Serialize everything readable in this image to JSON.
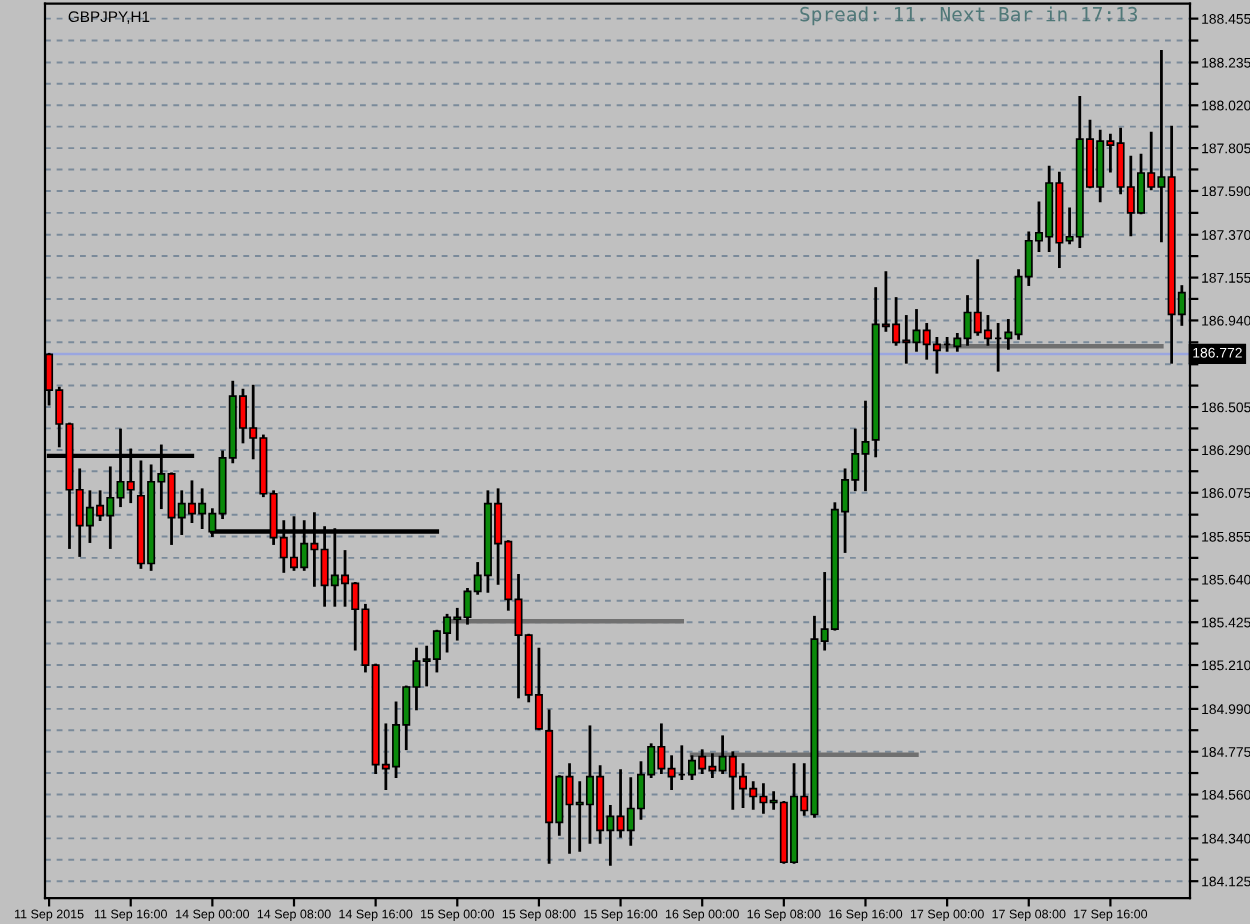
{
  "chart_data": {
    "type": "candlestick",
    "title": "GBPJPY,H1",
    "annotations": [
      "Spread: 11. Next Bar in 17:13"
    ],
    "categories": [
      "11 Sep 2015",
      null,
      null,
      null,
      null,
      null,
      null,
      null,
      "11 Sep 16:00",
      null,
      null,
      null,
      null,
      null,
      null,
      null,
      "14 Sep 00:00",
      null,
      null,
      null,
      null,
      null,
      null,
      null,
      "14 Sep 08:00",
      null,
      null,
      null,
      null,
      null,
      null,
      null,
      "14 Sep 16:00",
      null,
      null,
      null,
      null,
      null,
      null,
      null,
      "15 Sep 00:00",
      null,
      null,
      null,
      null,
      null,
      null,
      null,
      "15 Sep 08:00",
      null,
      null,
      null,
      null,
      null,
      null,
      null,
      "15 Sep 16:00",
      null,
      null,
      null,
      null,
      null,
      null,
      null,
      "16 Sep 00:00",
      null,
      null,
      null,
      null,
      null,
      null,
      null,
      "16 Sep 08:00",
      null,
      null,
      null,
      null,
      null,
      null,
      null,
      "16 Sep 16:00",
      null,
      null,
      null,
      null,
      null,
      null,
      null,
      "17 Sep 00:00",
      null,
      null,
      null,
      null,
      null,
      null,
      null,
      "17 Sep 08:00",
      null,
      null,
      null,
      null,
      null,
      null,
      null,
      "17 Sep 16:00",
      null,
      null,
      null,
      null,
      null,
      null,
      null
    ],
    "ohlc": [
      [
        186.77,
        186.77,
        186.52,
        186.59
      ],
      [
        186.59,
        186.6,
        186.31,
        186.42
      ],
      [
        186.42,
        186.42,
        185.8,
        186.09
      ],
      [
        186.09,
        186.19,
        185.76,
        185.91
      ],
      [
        185.91,
        186.08,
        185.83,
        186.0
      ],
      [
        186.01,
        186.08,
        185.94,
        185.96
      ],
      [
        185.96,
        186.2,
        185.8,
        186.05
      ],
      [
        186.05,
        186.39,
        186.01,
        186.13
      ],
      [
        186.13,
        186.29,
        186.03,
        186.09
      ],
      [
        186.06,
        186.23,
        185.7,
        185.72
      ],
      [
        185.72,
        186.21,
        185.69,
        186.13
      ],
      [
        186.13,
        186.31,
        186.0,
        186.17
      ],
      [
        186.17,
        186.17,
        185.82,
        185.95
      ],
      [
        185.95,
        186.08,
        185.87,
        186.02
      ],
      [
        186.02,
        186.13,
        185.93,
        185.97
      ],
      [
        185.97,
        186.09,
        185.9,
        186.02
      ],
      [
        185.88,
        185.99,
        185.86,
        185.97
      ],
      [
        185.97,
        186.28,
        185.95,
        186.25
      ],
      [
        186.25,
        186.63,
        186.23,
        186.56
      ],
      [
        186.56,
        186.59,
        186.33,
        186.4
      ],
      [
        186.4,
        186.61,
        186.25,
        186.35
      ],
      [
        186.35,
        186.36,
        186.06,
        186.07
      ],
      [
        186.07,
        186.08,
        185.82,
        185.85
      ],
      [
        185.85,
        185.93,
        185.68,
        185.75
      ],
      [
        185.75,
        185.95,
        185.69,
        185.7
      ],
      [
        185.7,
        185.93,
        185.69,
        185.82
      ],
      [
        185.82,
        185.97,
        185.61,
        185.79
      ],
      [
        185.79,
        185.9,
        185.51,
        185.61
      ],
      [
        185.61,
        185.89,
        185.51,
        185.66
      ],
      [
        185.66,
        185.78,
        185.51,
        185.62
      ],
      [
        185.62,
        185.62,
        185.29,
        185.49
      ],
      [
        185.49,
        185.51,
        185.18,
        185.21
      ],
      [
        185.21,
        185.21,
        184.67,
        184.71
      ],
      [
        184.71,
        184.91,
        184.59,
        184.69
      ],
      [
        184.7,
        185.02,
        184.65,
        184.91
      ],
      [
        184.91,
        185.1,
        184.79,
        185.1
      ],
      [
        185.1,
        185.29,
        184.99,
        185.23
      ],
      [
        185.23,
        185.3,
        185.11,
        185.24
      ],
      [
        185.24,
        185.38,
        185.18,
        185.38
      ],
      [
        185.37,
        185.46,
        185.28,
        185.45
      ],
      [
        185.44,
        185.49,
        185.34,
        185.45
      ],
      [
        185.45,
        185.59,
        185.42,
        185.58
      ],
      [
        185.58,
        185.72,
        185.57,
        185.66
      ],
      [
        185.66,
        186.08,
        185.58,
        186.02
      ],
      [
        186.02,
        186.09,
        185.62,
        185.82
      ],
      [
        185.83,
        185.83,
        185.49,
        185.54
      ],
      [
        185.54,
        185.66,
        185.05,
        185.36
      ],
      [
        185.36,
        185.36,
        185.03,
        185.06
      ],
      [
        185.06,
        185.29,
        184.89,
        184.89
      ],
      [
        184.88,
        184.98,
        184.22,
        184.42
      ],
      [
        184.42,
        184.65,
        184.36,
        184.65
      ],
      [
        184.65,
        184.71,
        184.27,
        184.51
      ],
      [
        184.51,
        184.62,
        184.28,
        184.52
      ],
      [
        184.51,
        184.9,
        184.32,
        184.65
      ],
      [
        184.65,
        184.7,
        184.32,
        184.38
      ],
      [
        184.38,
        184.5,
        184.21,
        184.45
      ],
      [
        184.45,
        184.68,
        184.35,
        184.38
      ],
      [
        184.38,
        184.64,
        184.31,
        184.49
      ],
      [
        184.49,
        184.72,
        184.44,
        184.66
      ],
      [
        184.66,
        184.81,
        184.65,
        184.8
      ],
      [
        184.8,
        184.91,
        184.67,
        184.69
      ],
      [
        184.69,
        184.75,
        184.59,
        184.65
      ],
      [
        184.66,
        184.8,
        184.64,
        184.66
      ],
      [
        184.66,
        184.75,
        184.64,
        184.73
      ],
      [
        184.75,
        184.78,
        184.67,
        184.69
      ],
      [
        184.7,
        184.76,
        184.65,
        184.68
      ],
      [
        184.68,
        184.85,
        184.67,
        184.75
      ],
      [
        184.75,
        184.77,
        184.49,
        184.65
      ],
      [
        184.65,
        184.71,
        184.5,
        184.59
      ],
      [
        184.59,
        184.62,
        184.49,
        184.55
      ],
      [
        184.55,
        184.61,
        184.47,
        184.52
      ],
      [
        184.52,
        184.57,
        184.49,
        184.53
      ],
      [
        184.52,
        184.52,
        184.22,
        184.22
      ],
      [
        184.22,
        184.71,
        184.22,
        184.55
      ],
      [
        184.55,
        184.71,
        184.46,
        184.48
      ],
      [
        184.46,
        185.45,
        184.45,
        185.34
      ],
      [
        185.33,
        185.67,
        185.29,
        185.39
      ],
      [
        185.39,
        186.02,
        185.39,
        185.99
      ],
      [
        185.98,
        186.19,
        185.78,
        186.14
      ],
      [
        186.14,
        186.39,
        186.09,
        186.27
      ],
      [
        186.27,
        186.53,
        186.09,
        186.33
      ],
      [
        186.34,
        187.1,
        186.26,
        186.92
      ],
      [
        186.92,
        187.18,
        186.89,
        186.91
      ],
      [
        186.92,
        187.05,
        186.82,
        186.83
      ],
      [
        186.84,
        186.96,
        186.73,
        186.83
      ],
      [
        186.83,
        186.99,
        186.79,
        186.89
      ],
      [
        186.89,
        186.92,
        186.75,
        186.82
      ],
      [
        186.82,
        186.85,
        186.68,
        186.79
      ],
      [
        186.82,
        186.85,
        186.79,
        186.82
      ],
      [
        186.81,
        186.87,
        186.79,
        186.85
      ],
      [
        186.85,
        187.06,
        186.82,
        186.98
      ],
      [
        186.98,
        187.24,
        186.87,
        186.88
      ],
      [
        186.89,
        186.96,
        186.82,
        186.85
      ],
      [
        186.85,
        186.92,
        186.69,
        186.85
      ],
      [
        186.85,
        186.94,
        186.8,
        186.88
      ],
      [
        186.87,
        187.19,
        186.85,
        187.16
      ],
      [
        187.16,
        187.38,
        187.12,
        187.34
      ],
      [
        187.34,
        187.53,
        187.29,
        187.38
      ],
      [
        187.36,
        187.71,
        187.29,
        187.63
      ],
      [
        187.63,
        187.68,
        187.21,
        187.33
      ],
      [
        187.34,
        187.5,
        187.33,
        187.36
      ],
      [
        187.36,
        188.06,
        187.31,
        187.85
      ],
      [
        187.85,
        187.94,
        187.61,
        187.61
      ],
      [
        187.61,
        187.89,
        187.54,
        187.84
      ],
      [
        187.84,
        187.87,
        187.69,
        187.82
      ],
      [
        187.83,
        187.9,
        187.58,
        187.61
      ],
      [
        187.61,
        187.76,
        187.37,
        187.48
      ],
      [
        187.48,
        187.77,
        187.48,
        187.68
      ],
      [
        187.68,
        187.88,
        187.6,
        187.61
      ],
      [
        187.61,
        188.29,
        187.34,
        187.66
      ],
      [
        187.66,
        187.91,
        186.73,
        186.97
      ],
      [
        186.97,
        187.11,
        186.92,
        187.08
      ]
    ],
    "colors": [
      "#ff0000",
      "#ff0000",
      "#ff0000",
      "#ff0000",
      "#0a8a0a",
      "#ff0000",
      "#0a8a0a",
      "#0a8a0a",
      "#ff0000",
      "#ff0000",
      "#0a8a0a",
      "#0a8a0a",
      "#ff0000",
      "#0a8a0a",
      "#ff0000",
      "#0a8a0a",
      "#0a8a0a",
      "#0a8a0a",
      "#0a8a0a",
      "#ff0000",
      "#ff0000",
      "#ff0000",
      "#ff0000",
      "#ff0000",
      "#ff0000",
      "#0a8a0a",
      "#ff0000",
      "#ff0000",
      "#0a8a0a",
      "#ff0000",
      "#ff0000",
      "#ff0000",
      "#ff0000",
      "#ff0000",
      "#0a8a0a",
      "#0a8a0a",
      "#0a8a0a",
      "#0a8a0a",
      "#0a8a0a",
      "#0a8a0a",
      "#0a8a0a",
      "#0a8a0a",
      "#0a8a0a",
      "#0a8a0a",
      "#ff0000",
      "#ff0000",
      "#ff0000",
      "#ff0000",
      "#ff0000",
      "#ff0000",
      "#0a8a0a",
      "#ff0000",
      "#0a8a0a",
      "#0a8a0a",
      "#ff0000",
      "#0a8a0a",
      "#ff0000",
      "#0a8a0a",
      "#0a8a0a",
      "#0a8a0a",
      "#ff0000",
      "#ff0000",
      "#000000",
      "#0a8a0a",
      "#ff0000",
      "#ff0000",
      "#0a8a0a",
      "#ff0000",
      "#ff0000",
      "#ff0000",
      "#ff0000",
      "#0a8a0a",
      "#ff0000",
      "#0a8a0a",
      "#ff0000",
      "#0a8a0a",
      "#0a8a0a",
      "#0a8a0a",
      "#0a8a0a",
      "#0a8a0a",
      "#0a8a0a",
      "#0a8a0a",
      "#ff0000",
      "#ff0000",
      "#ff0000",
      "#0a8a0a",
      "#ff0000",
      "#ff0000",
      "#000000",
      "#0a8a0a",
      "#0a8a0a",
      "#ff0000",
      "#ff0000",
      "#000000",
      "#0a8a0a",
      "#0a8a0a",
      "#0a8a0a",
      "#0a8a0a",
      "#0a8a0a",
      "#ff0000",
      "#0a8a0a",
      "#0a8a0a",
      "#ff0000",
      "#0a8a0a",
      "#ff0000",
      "#ff0000",
      "#ff0000",
      "#0a8a0a",
      "#ff0000",
      "#0a8a0a",
      "#ff0000",
      "#0a8a0a"
    ],
    "series": [
      {
        "type": "line",
        "color": "#000000",
        "values": [
          186.26,
          186.26,
          186.26,
          186.26,
          186.26,
          186.26,
          186.26,
          186.26,
          186.26,
          186.26,
          186.26,
          186.26,
          186.26,
          186.26,
          186.26,
          null,
          null,
          null,
          null,
          null,
          null,
          null,
          null,
          null,
          null,
          null,
          null,
          null,
          null,
          null,
          null,
          null,
          null,
          null,
          null,
          null,
          null,
          null,
          null,
          null,
          null,
          null,
          null,
          null,
          null,
          null,
          null,
          null,
          null,
          null,
          null,
          null,
          null,
          null,
          null,
          null,
          null,
          null,
          null,
          null,
          null,
          null,
          null,
          null,
          null,
          null,
          null,
          null,
          null,
          null,
          null,
          null,
          null,
          null,
          null,
          null,
          null,
          null,
          null,
          null,
          null,
          null,
          null,
          null,
          null,
          null,
          null,
          null,
          null,
          null,
          null,
          null,
          null,
          null,
          null,
          null,
          null,
          null,
          null,
          null,
          null,
          null,
          null,
          null,
          null,
          null,
          null,
          null,
          null,
          null,
          null,
          null
        ]
      },
      {
        "type": "line",
        "color": "#000000",
        "values": [
          null,
          null,
          null,
          null,
          null,
          null,
          null,
          null,
          null,
          null,
          null,
          null,
          null,
          null,
          null,
          null,
          185.88,
          185.88,
          185.88,
          185.88,
          185.88,
          185.88,
          185.88,
          185.88,
          185.88,
          185.88,
          185.88,
          185.88,
          185.88,
          185.88,
          185.88,
          185.88,
          185.88,
          185.88,
          185.88,
          185.88,
          185.88,
          185.88,
          185.88,
          null,
          null,
          null,
          null,
          null,
          null,
          null,
          null,
          null,
          null,
          null,
          null,
          null,
          null,
          null,
          null,
          null,
          null,
          null,
          null,
          null,
          null,
          null,
          null,
          null,
          null,
          null,
          null,
          null,
          null,
          null,
          null,
          null,
          null,
          null,
          null,
          null,
          null,
          null,
          null,
          null,
          null,
          null,
          null,
          null,
          null,
          null,
          null,
          null,
          null,
          null,
          null,
          null,
          null,
          null,
          null,
          null,
          null,
          null,
          null,
          null,
          null,
          null,
          null,
          null,
          null,
          null,
          null,
          null,
          null,
          null,
          null,
          null
        ]
      },
      {
        "type": "line",
        "color": "#707070",
        "values": [
          null,
          null,
          null,
          null,
          null,
          null,
          null,
          null,
          null,
          null,
          null,
          null,
          null,
          null,
          null,
          null,
          null,
          null,
          null,
          null,
          null,
          null,
          null,
          null,
          null,
          null,
          null,
          null,
          null,
          null,
          null,
          null,
          null,
          null,
          null,
          null,
          null,
          null,
          null,
          185.43,
          185.43,
          185.43,
          185.43,
          185.43,
          185.43,
          185.43,
          185.43,
          185.43,
          185.43,
          185.43,
          185.43,
          185.43,
          185.43,
          185.43,
          185.43,
          185.43,
          185.43,
          185.43,
          185.43,
          185.43,
          185.43,
          185.43,
          185.43,
          null,
          null,
          null,
          null,
          null,
          null,
          null,
          null,
          null,
          null,
          null,
          null,
          null,
          null,
          null,
          null,
          null,
          null,
          null,
          null,
          null,
          null,
          null,
          null,
          null,
          null,
          null,
          null,
          null,
          null,
          null,
          null,
          null,
          null,
          null,
          null,
          null,
          null,
          null,
          null,
          null,
          null,
          null,
          null,
          null,
          null,
          null,
          null,
          null
        ]
      },
      {
        "type": "line",
        "color": "#707070",
        "values": [
          null,
          null,
          null,
          null,
          null,
          null,
          null,
          null,
          null,
          null,
          null,
          null,
          null,
          null,
          null,
          null,
          null,
          null,
          null,
          null,
          null,
          null,
          null,
          null,
          null,
          null,
          null,
          null,
          null,
          null,
          null,
          null,
          null,
          null,
          null,
          null,
          null,
          null,
          null,
          null,
          null,
          null,
          null,
          null,
          null,
          null,
          null,
          null,
          null,
          null,
          null,
          null,
          null,
          null,
          null,
          null,
          null,
          null,
          null,
          null,
          null,
          null,
          null,
          184.76,
          184.76,
          184.76,
          184.76,
          184.76,
          184.76,
          184.76,
          184.76,
          184.76,
          184.76,
          184.76,
          184.76,
          184.76,
          184.76,
          184.76,
          184.76,
          184.76,
          184.76,
          184.76,
          184.76,
          184.76,
          184.76,
          184.76,
          null,
          null,
          null,
          null,
          null,
          null,
          null,
          null,
          null,
          null,
          null,
          null,
          null,
          null,
          null,
          null,
          null,
          null,
          null,
          null,
          null,
          null,
          null,
          null,
          null,
          null
        ]
      },
      {
        "type": "line",
        "color": "#707070",
        "values": [
          null,
          null,
          null,
          null,
          null,
          null,
          null,
          null,
          null,
          null,
          null,
          null,
          null,
          null,
          null,
          null,
          null,
          null,
          null,
          null,
          null,
          null,
          null,
          null,
          null,
          null,
          null,
          null,
          null,
          null,
          null,
          null,
          null,
          null,
          null,
          null,
          null,
          null,
          null,
          null,
          null,
          null,
          null,
          null,
          null,
          null,
          null,
          null,
          null,
          null,
          null,
          null,
          null,
          null,
          null,
          null,
          null,
          null,
          null,
          null,
          null,
          null,
          null,
          null,
          null,
          null,
          null,
          null,
          null,
          null,
          null,
          null,
          null,
          null,
          null,
          null,
          null,
          null,
          null,
          null,
          null,
          null,
          null,
          null,
          null,
          null,
          null,
          186.81,
          186.81,
          186.81,
          186.81,
          186.81,
          186.81,
          186.81,
          186.81,
          186.81,
          186.81,
          186.81,
          186.81,
          186.81,
          186.81,
          186.81,
          186.81,
          186.81,
          186.81,
          186.81,
          186.81,
          186.81,
          186.81,
          186.81,
          null,
          null
        ]
      }
    ],
    "ref_lines": [
      {
        "axis": "y",
        "value": 186.772,
        "label": "186.772",
        "color": "#9aa6e0"
      }
    ],
    "ylim": [
      184.04,
      188.53
    ],
    "yticks": [
      184.125,
      {
        "value": 184.233,
        "label": null
      },
      {
        "value": 184.34,
        "label": "184.340"
      },
      {
        "value": 184.45,
        "label": null
      },
      {
        "value": 184.56,
        "label": "184.560"
      },
      {
        "value": 184.668,
        "label": null
      },
      184.775,
      {
        "value": 184.883,
        "label": null
      },
      {
        "value": 184.99,
        "label": "184.990"
      },
      {
        "value": 185.1,
        "label": null
      },
      {
        "value": 185.21,
        "label": "185.210"
      },
      {
        "value": 185.318,
        "label": null
      },
      185.425,
      {
        "value": 185.533,
        "label": null
      },
      {
        "value": 185.64,
        "label": "185.640"
      },
      {
        "value": 185.748,
        "label": null
      },
      185.855,
      {
        "value": 185.965,
        "label": null
      },
      186.075,
      {
        "value": 186.183,
        "label": null
      },
      {
        "value": 186.29,
        "label": "186.290"
      },
      {
        "value": 186.398,
        "label": null
      },
      186.505,
      {
        "value": 186.613,
        "label": null
      },
      {
        "value": 186.72,
        "label": null
      },
      {
        "value": 186.83,
        "label": null
      },
      {
        "value": 186.94,
        "label": "186.940"
      },
      {
        "value": 187.048,
        "label": null
      },
      187.155,
      {
        "value": 187.263,
        "label": null
      },
      {
        "value": 187.37,
        "label": "187.370"
      },
      {
        "value": 187.48,
        "label": null
      },
      {
        "value": 187.59,
        "label": "187.590"
      },
      {
        "value": 187.698,
        "label": null
      },
      187.805,
      {
        "value": 187.913,
        "label": null
      },
      {
        "value": 188.02,
        "label": "188.020"
      },
      {
        "value": 188.128,
        "label": null
      },
      188.235,
      {
        "value": 188.345,
        "label": null
      },
      188.455
    ],
    "grid": "y"
  }
}
